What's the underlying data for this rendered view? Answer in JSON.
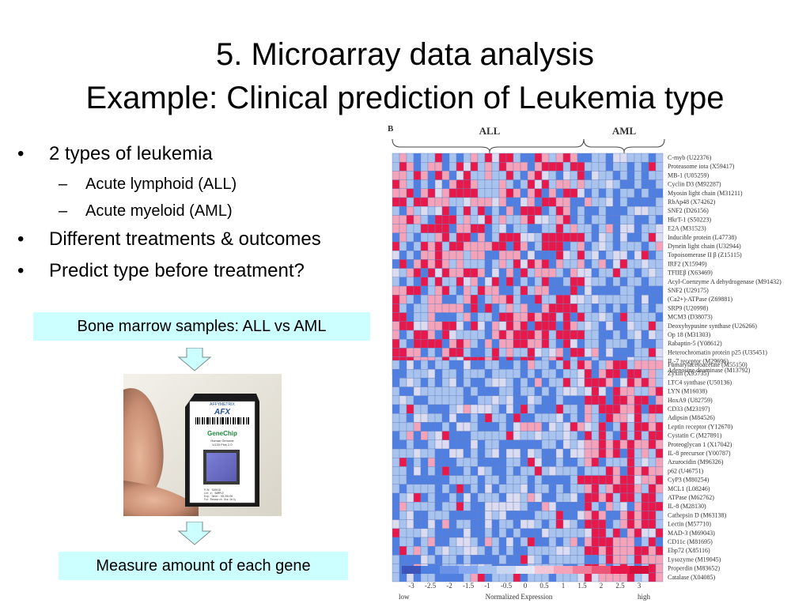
{
  "title": {
    "line1": "5. Microarray data analysis",
    "line2": "Example: Clinical prediction of Leukemia type"
  },
  "bullets": [
    {
      "text": "2 types of leukemia",
      "sub": [
        "Acute lymphoid (ALL)",
        "Acute myeloid (AML)"
      ]
    },
    {
      "text": "Different treatments & outcomes",
      "sub": []
    },
    {
      "text": "Predict type before treatment?",
      "sub": []
    }
  ],
  "bullet_char": "•",
  "dash_char": "–",
  "box1": "Bone marrow samples: ALL vs AML",
  "box2": "Measure amount of each gene",
  "chip": {
    "brand": "AFFYMETRIX",
    "logo": "AFX",
    "name": "GeneChip",
    "line1": "Human Genome",
    "line2": "U133 Plus 2.0",
    "pn": "P/N:      520019",
    "lot": "Lot #:    SAMPLE",
    "exp": "Exp. Date: 00/00/00",
    "use": "For Research Use Only"
  },
  "figure": {
    "panel_label": "B",
    "group_all": "ALL",
    "group_aml": "AML",
    "colors": {
      "high": "#e8194a",
      "mid_high": "#f5a3b8",
      "neutral": "#dcdcf0",
      "mid_low": "#a8c4ee",
      "low": "#4f7fe0",
      "grid": "#6a7fc0"
    },
    "top_genes": [
      "C-myb (U22376)",
      "Proteasome iota (X59417)",
      "MB-1 (U05259)",
      "Cyclin D3 (M92287)",
      "Myosin light chain (M31211)",
      "RbAp48 (X74262)",
      "SNF2 (D26156)",
      "HkrT-1 (S50223)",
      "E2A (M31523)",
      "Inducible protein (L47738)",
      "Dynein light chain (U32944)",
      "Topoisomerase II β (Z15115)",
      "IRF2 (X15949)",
      "TFIIEβ (X63469)",
      "Acyl-Coenzyme A dehydrogenase (M91432)",
      "SNF2 (U29175)",
      "(Ca2+)-ATPase (Z69881)",
      "SRP9 (U20998)",
      "MCM3 (D38073)",
      "Deoxyhypusine synthase (U26266)",
      "Op 18 (M31303)",
      "Rabaptin-5 (Y08612)",
      "Heterochromatin protein p25 (U35451)",
      "IL-7 receptor (M29696)",
      "Adenosine deaminase (M13792)"
    ],
    "bottom_genes": [
      "Fumarylacetoacetate (M55150)",
      "Zyxin (X95735)",
      "LTC4 synthase (U50136)",
      "LYN (M16038)",
      "HoxA9 (U82759)",
      "CD33 (M23197)",
      "Adipsin (M84526)",
      "Leptin receptor (Y12670)",
      "Cystatin C (M27891)",
      "Proteoglycan 1 (X17042)",
      "IL-8 precursor (Y00787)",
      "Azurocidin (M96326)",
      "p62 (U46751)",
      "CyP3 (M80254)",
      "MCL1 (L08246)",
      "ATPase (M62762)",
      "IL-8 (M28130)",
      "Cathepsin D (M63138)",
      "Lectin (M57710)",
      "MAD-3 (M69043)",
      "CD11c (M81695)",
      "Ebp72 (X85116)",
      "Lysozyme (M19045)",
      "Properdin (M83652)",
      "Catalase (X04085)"
    ],
    "scale_ticks": [
      "-3",
      "-2.5",
      "-2",
      "-1.5",
      "-1",
      "-0.5",
      "0",
      "0.5",
      "1",
      "1.5",
      "2",
      "2.5",
      "3"
    ],
    "scale_low": "low",
    "scale_label": "Normalized Expression",
    "scale_high": "high"
  }
}
